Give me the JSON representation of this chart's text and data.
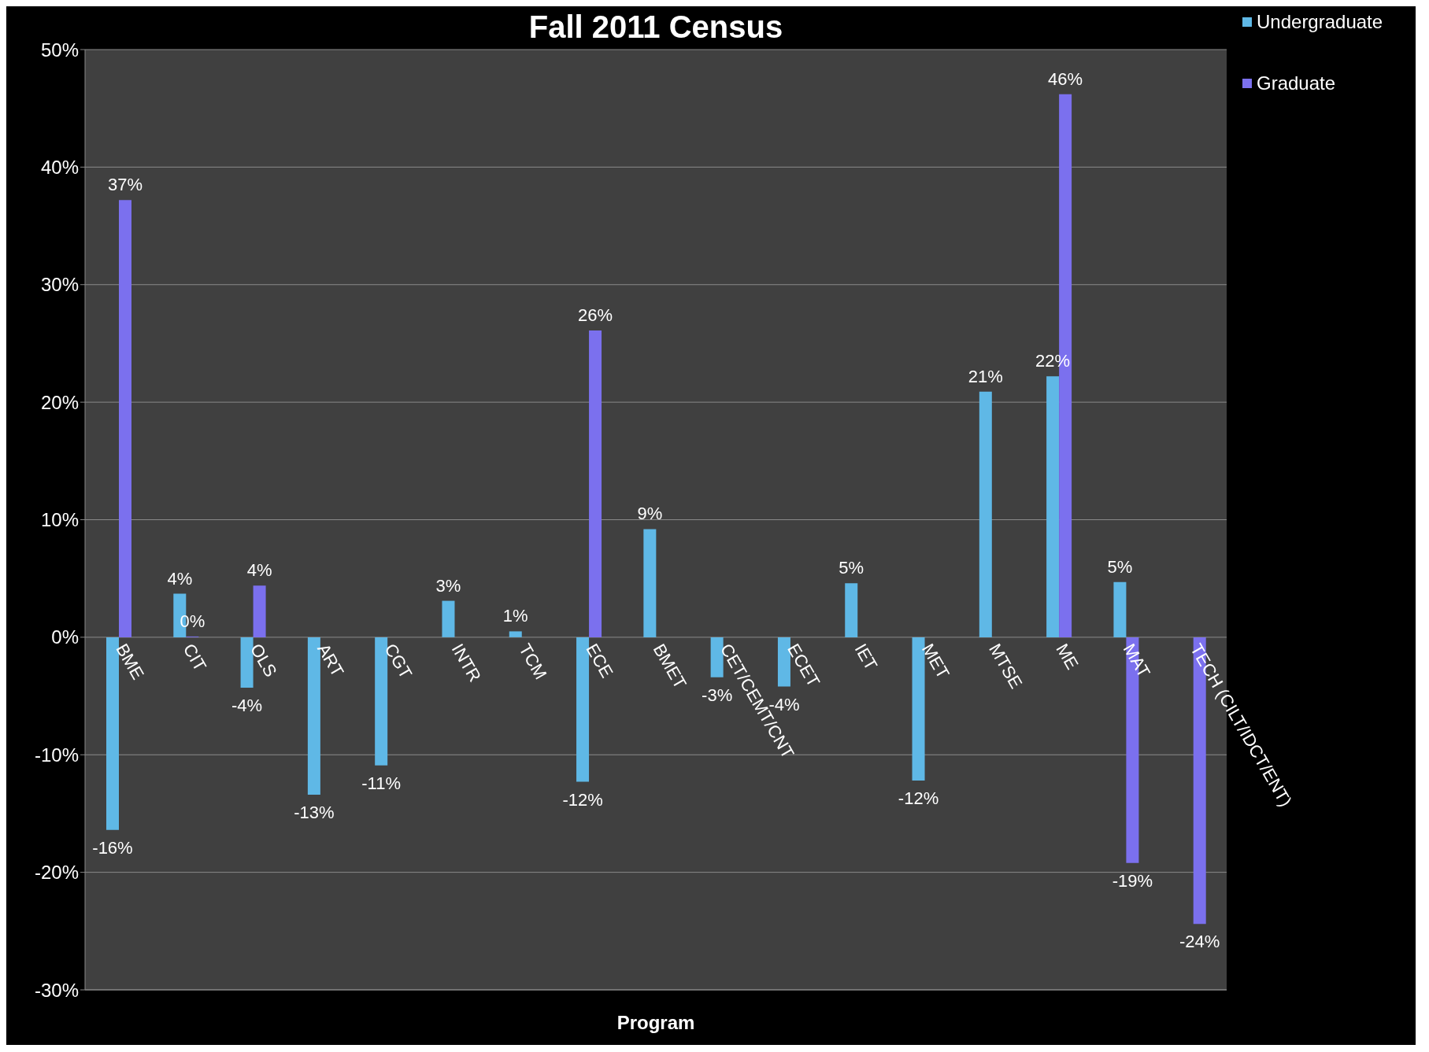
{
  "chart_data": {
    "type": "bar",
    "title": "Fall 2011 Census",
    "xlabel": "Program",
    "categories": [
      "BME",
      "CIT",
      "OLS",
      "ART",
      "CGT",
      "INTR",
      "TCM",
      "ECE",
      "BMET",
      "CET/CEMT/CNT",
      "ECET",
      "IET",
      "MET",
      "MTSE",
      "ME",
      "MAT",
      "TECH (CILT/IDCT/ENT)"
    ],
    "series": [
      {
        "name": "Undergraduate",
        "color": "#5fb8e6",
        "values": [
          -16.4,
          3.7,
          -4.3,
          -13.4,
          -10.9,
          3.1,
          0.5,
          -12.3,
          9.2,
          -3.4,
          -4.2,
          4.6,
          -12.2,
          20.9,
          22.2,
          4.7,
          null
        ],
        "value_labels": [
          "-16%",
          "4%",
          "-4%",
          "-13%",
          "-11%",
          "3%",
          "1%",
          "-12%",
          "9%",
          "-3%",
          "-4%",
          "5%",
          "-12%",
          "21%",
          "22%",
          "5%",
          null
        ]
      },
      {
        "name": "Graduate",
        "color": "#7b70ee",
        "values": [
          37.2,
          0,
          4.4,
          null,
          null,
          null,
          null,
          26.1,
          null,
          null,
          null,
          null,
          null,
          null,
          46.2,
          -19.2,
          -24.4
        ],
        "value_labels": [
          "37%",
          "0%",
          "4%",
          null,
          null,
          null,
          null,
          "26%",
          null,
          null,
          null,
          null,
          null,
          null,
          "46%",
          "-19%",
          "-24%"
        ]
      }
    ],
    "ylim": [
      -30,
      50
    ],
    "yticks": [
      {
        "value": -30,
        "label": "-30%"
      },
      {
        "value": -20,
        "label": "-20%"
      },
      {
        "value": -10,
        "label": "-10%"
      },
      {
        "value": 0,
        "label": "0%"
      },
      {
        "value": 10,
        "label": "10%"
      },
      {
        "value": 20,
        "label": "20%"
      },
      {
        "value": 30,
        "label": "30%"
      },
      {
        "value": 40,
        "label": "40%"
      },
      {
        "value": 50,
        "label": "50%"
      }
    ],
    "grid": "y",
    "legend": "top right"
  }
}
